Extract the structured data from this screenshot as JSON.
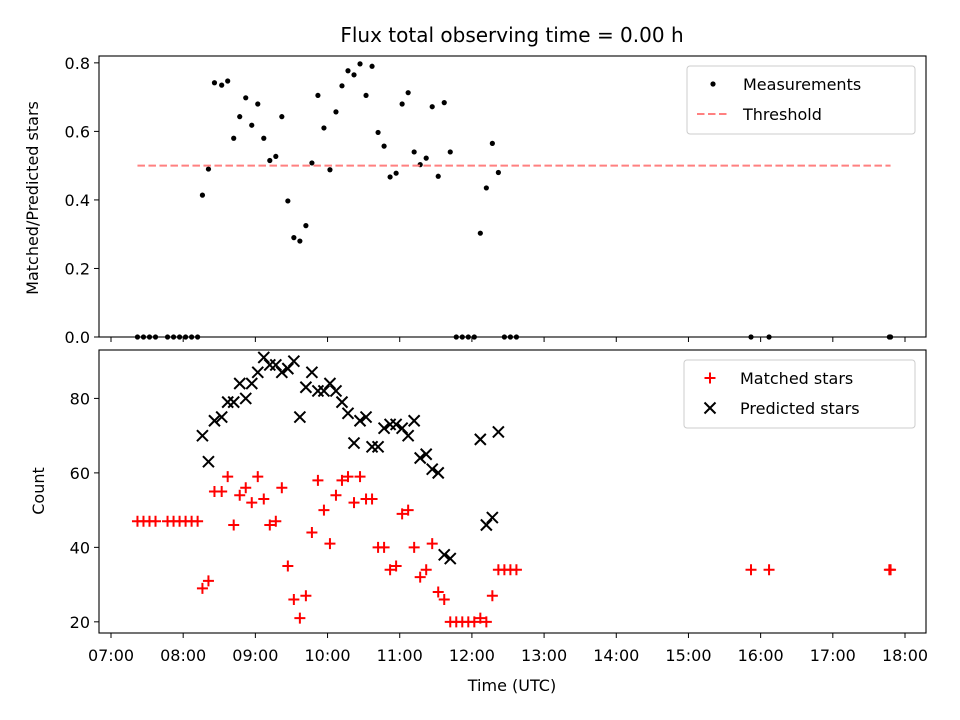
{
  "chart_data": [
    {
      "type": "scatter",
      "title": "Flux total observing time = 0.00 h",
      "xlabel": "",
      "ylabel": "Matched/Predicted stars",
      "xlim": [
        "07:00",
        "18:00"
      ],
      "ylim": [
        0,
        0.82
      ],
      "yticks": [
        0.0,
        0.2,
        0.4,
        0.6,
        0.8
      ],
      "ytick_labels": [
        "0.0",
        "0.2",
        "0.4",
        "0.6",
        "0.8"
      ],
      "legend_placement": "top-right",
      "grid": false,
      "series": [
        {
          "name": "Measurements",
          "marker": "dot",
          "color": "#000000",
          "points": [
            [
              "07:22",
              0
            ],
            [
              "07:27",
              0
            ],
            [
              "07:32",
              0
            ],
            [
              "07:37",
              0
            ],
            [
              "07:47",
              0
            ],
            [
              "07:52",
              0
            ],
            [
              "07:57",
              0
            ],
            [
              "08:02",
              0
            ],
            [
              "08:07",
              0
            ],
            [
              "08:12",
              0
            ],
            [
              "08:16",
              0.414
            ],
            [
              "08:21",
              0.49
            ],
            [
              "08:26",
              0.742
            ],
            [
              "08:32",
              0.735
            ],
            [
              "08:37",
              0.747
            ],
            [
              "08:42",
              0.58
            ],
            [
              "08:47",
              0.643
            ],
            [
              "08:52",
              0.698
            ],
            [
              "08:57",
              0.618
            ],
            [
              "09:02",
              0.68
            ],
            [
              "09:07",
              0.58
            ],
            [
              "09:12",
              0.515
            ],
            [
              "09:17",
              0.527
            ],
            [
              "09:22",
              0.643
            ],
            [
              "09:27",
              0.397
            ],
            [
              "09:32",
              0.29
            ],
            [
              "09:37",
              0.28
            ],
            [
              "09:42",
              0.325
            ],
            [
              "09:47",
              0.508
            ],
            [
              "09:52",
              0.705
            ],
            [
              "09:57",
              0.61
            ],
            [
              "10:02",
              0.488
            ],
            [
              "10:07",
              0.657
            ],
            [
              "10:12",
              0.733
            ],
            [
              "10:17",
              0.777
            ],
            [
              "10:22",
              0.765
            ],
            [
              "10:27",
              0.797
            ],
            [
              "10:32",
              0.705
            ],
            [
              "10:37",
              0.79
            ],
            [
              "10:42",
              0.597
            ],
            [
              "10:47",
              0.557
            ],
            [
              "10:52",
              0.467
            ],
            [
              "10:57",
              0.478
            ],
            [
              "11:02",
              0.68
            ],
            [
              "11:07",
              0.713
            ],
            [
              "11:12",
              0.54
            ],
            [
              "11:17",
              0.503
            ],
            [
              "11:22",
              0.522
            ],
            [
              "11:27",
              0.672
            ],
            [
              "11:32",
              0.469
            ],
            [
              "11:37",
              0.684
            ],
            [
              "11:42",
              0.54
            ],
            [
              "11:47",
              0
            ],
            [
              "11:52",
              0
            ],
            [
              "11:57",
              0
            ],
            [
              "12:02",
              0
            ],
            [
              "12:07",
              0.303
            ],
            [
              "12:12",
              0.435
            ],
            [
              "12:17",
              0.565
            ],
            [
              "12:22",
              0.48
            ],
            [
              "12:27",
              0
            ],
            [
              "12:32",
              0
            ],
            [
              "12:37",
              0
            ],
            [
              "15:52",
              0
            ],
            [
              "16:07",
              0
            ],
            [
              "17:47",
              0
            ],
            [
              "17:48",
              0
            ]
          ]
        },
        {
          "name": "Threshold",
          "line": "dashed",
          "color": "#ff8080",
          "points": [
            [
              "07:22",
              0.5
            ],
            [
              "17:48",
              0.5
            ]
          ]
        }
      ]
    },
    {
      "type": "scatter",
      "title": "",
      "xlabel": "Time (UTC)",
      "ylabel": "Count",
      "xlim": [
        "07:00",
        "18:00"
      ],
      "ylim": [
        17,
        93
      ],
      "xticks": [
        "07:00",
        "08:00",
        "09:00",
        "10:00",
        "11:00",
        "12:00",
        "13:00",
        "14:00",
        "15:00",
        "16:00",
        "17:00",
        "18:00"
      ],
      "yticks": [
        20,
        40,
        60,
        80
      ],
      "ytick_labels": [
        "20",
        "40",
        "60",
        "80"
      ],
      "legend_placement": "top-right",
      "grid": false,
      "series": [
        {
          "name": "Matched stars",
          "marker": "plus",
          "color": "#ff0000",
          "points": [
            [
              "07:22",
              47
            ],
            [
              "07:27",
              47
            ],
            [
              "07:32",
              47
            ],
            [
              "07:37",
              47
            ],
            [
              "07:47",
              47
            ],
            [
              "07:52",
              47
            ],
            [
              "07:57",
              47
            ],
            [
              "08:02",
              47
            ],
            [
              "08:07",
              47
            ],
            [
              "08:12",
              47
            ],
            [
              "08:16",
              29
            ],
            [
              "08:21",
              31
            ],
            [
              "08:26",
              55
            ],
            [
              "08:32",
              55
            ],
            [
              "08:37",
              59
            ],
            [
              "08:42",
              46
            ],
            [
              "08:47",
              54
            ],
            [
              "08:52",
              56
            ],
            [
              "08:57",
              52
            ],
            [
              "09:02",
              59
            ],
            [
              "09:07",
              53
            ],
            [
              "09:12",
              46
            ],
            [
              "09:17",
              47
            ],
            [
              "09:22",
              56
            ],
            [
              "09:27",
              35
            ],
            [
              "09:32",
              26
            ],
            [
              "09:37",
              21
            ],
            [
              "09:42",
              27
            ],
            [
              "09:47",
              44
            ],
            [
              "09:52",
              58
            ],
            [
              "09:57",
              50
            ],
            [
              "10:02",
              41
            ],
            [
              "10:07",
              54
            ],
            [
              "10:12",
              58
            ],
            [
              "10:17",
              59
            ],
            [
              "10:22",
              52
            ],
            [
              "10:27",
              59
            ],
            [
              "10:32",
              53
            ],
            [
              "10:37",
              53
            ],
            [
              "10:42",
              40
            ],
            [
              "10:47",
              40
            ],
            [
              "10:52",
              34
            ],
            [
              "10:57",
              35
            ],
            [
              "11:02",
              49
            ],
            [
              "11:07",
              50
            ],
            [
              "11:12",
              40
            ],
            [
              "11:17",
              32
            ],
            [
              "11:22",
              34
            ],
            [
              "11:27",
              41
            ],
            [
              "11:32",
              28
            ],
            [
              "11:37",
              26
            ],
            [
              "11:42",
              20
            ],
            [
              "11:47",
              20
            ],
            [
              "11:52",
              20
            ],
            [
              "11:57",
              20
            ],
            [
              "12:02",
              20
            ],
            [
              "12:07",
              21
            ],
            [
              "12:12",
              20
            ],
            [
              "12:17",
              27
            ],
            [
              "12:22",
              34
            ],
            [
              "12:27",
              34
            ],
            [
              "12:32",
              34
            ],
            [
              "12:37",
              34
            ],
            [
              "15:52",
              34
            ],
            [
              "16:07",
              34
            ],
            [
              "17:47",
              34
            ],
            [
              "17:48",
              34
            ]
          ]
        },
        {
          "name": "Predicted stars",
          "marker": "x",
          "color": "#000000",
          "points": [
            [
              "08:16",
              70
            ],
            [
              "08:21",
              63
            ],
            [
              "08:26",
              74
            ],
            [
              "08:32",
              75
            ],
            [
              "08:37",
              79
            ],
            [
              "08:42",
              79
            ],
            [
              "08:47",
              84
            ],
            [
              "08:52",
              80
            ],
            [
              "08:57",
              84
            ],
            [
              "09:02",
              87
            ],
            [
              "09:07",
              91
            ],
            [
              "09:12",
              89
            ],
            [
              "09:17",
              89
            ],
            [
              "09:22",
              87
            ],
            [
              "09:27",
              88
            ],
            [
              "09:32",
              90
            ],
            [
              "09:37",
              75
            ],
            [
              "09:42",
              83
            ],
            [
              "09:47",
              87
            ],
            [
              "09:52",
              82
            ],
            [
              "09:57",
              82
            ],
            [
              "10:02",
              84
            ],
            [
              "10:07",
              82
            ],
            [
              "10:12",
              79
            ],
            [
              "10:17",
              76
            ],
            [
              "10:22",
              68
            ],
            [
              "10:27",
              74
            ],
            [
              "10:32",
              75
            ],
            [
              "10:37",
              67
            ],
            [
              "10:42",
              67
            ],
            [
              "10:47",
              72
            ],
            [
              "10:52",
              73
            ],
            [
              "10:57",
              73
            ],
            [
              "11:02",
              72
            ],
            [
              "11:07",
              70
            ],
            [
              "11:12",
              74
            ],
            [
              "11:17",
              64
            ],
            [
              "11:22",
              65
            ],
            [
              "11:27",
              61
            ],
            [
              "11:32",
              60
            ],
            [
              "11:37",
              38
            ],
            [
              "11:42",
              37
            ],
            [
              "12:07",
              69
            ],
            [
              "12:12",
              46
            ],
            [
              "12:17",
              48
            ],
            [
              "12:22",
              71
            ]
          ]
        }
      ]
    }
  ]
}
